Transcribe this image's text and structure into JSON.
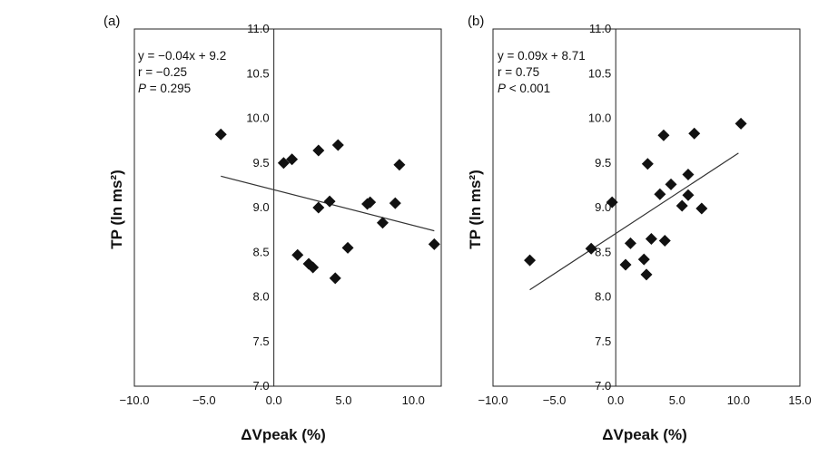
{
  "chart_data": [
    {
      "type": "scatter",
      "panel_label": "(a)",
      "xlabel": "ΔVpeak (%)",
      "ylabel": "TP (ln  ms²)",
      "xlim": [
        -10,
        12
      ],
      "ylim": [
        7.0,
        11.0
      ],
      "x_ticks": [
        "−10.0",
        "−5.0",
        "0.0",
        "5.0",
        "10.0"
      ],
      "y_ticks": [
        "7.0",
        "7.5",
        "8.0",
        "8.5",
        "9.0",
        "9.5",
        "10.0",
        "10.5",
        "11.0"
      ],
      "annotation": {
        "line1": "y = −0.04x + 9.2",
        "line2": "r = −0.25",
        "p_label": "P",
        "p_value": " = 0.295"
      },
      "regression": {
        "slope": -0.04,
        "intercept": 9.2,
        "x_range": [
          -3.8,
          11.5
        ]
      },
      "points": [
        {
          "x": -3.8,
          "y": 9.82
        },
        {
          "x": 0.7,
          "y": 9.5
        },
        {
          "x": 1.3,
          "y": 9.54
        },
        {
          "x": 1.7,
          "y": 8.47
        },
        {
          "x": 2.5,
          "y": 8.37
        },
        {
          "x": 2.8,
          "y": 8.33
        },
        {
          "x": 3.2,
          "y": 9.0
        },
        {
          "x": 3.2,
          "y": 9.64
        },
        {
          "x": 4.0,
          "y": 9.07
        },
        {
          "x": 4.4,
          "y": 8.21
        },
        {
          "x": 4.6,
          "y": 9.7
        },
        {
          "x": 5.3,
          "y": 8.55
        },
        {
          "x": 6.7,
          "y": 9.04
        },
        {
          "x": 6.9,
          "y": 9.06
        },
        {
          "x": 7.8,
          "y": 8.83
        },
        {
          "x": 8.7,
          "y": 9.05
        },
        {
          "x": 9.0,
          "y": 9.48
        },
        {
          "x": 11.5,
          "y": 8.59
        }
      ]
    },
    {
      "type": "scatter",
      "panel_label": "(b)",
      "xlabel": "ΔVpeak (%)",
      "ylabel": "TP (ln  ms²)",
      "xlim": [
        -10,
        15
      ],
      "ylim": [
        7.0,
        11.0
      ],
      "x_ticks": [
        "−10.0",
        "−5.0",
        "0.0",
        "5.0",
        "10.0",
        "15.0"
      ],
      "y_ticks": [
        "7.0",
        "7.5",
        "8.0",
        "8.5",
        "9.0",
        "9.5",
        "10.0",
        "10.5",
        "11.0"
      ],
      "annotation": {
        "line1": "y = 0.09x + 8.71",
        "line2": "r = 0.75",
        "p_label": "P",
        "p_value": " < 0.001"
      },
      "regression": {
        "slope": 0.09,
        "intercept": 8.71,
        "x_range": [
          -7.0,
          10.0
        ]
      },
      "points": [
        {
          "x": -7.0,
          "y": 8.41
        },
        {
          "x": -0.3,
          "y": 9.06
        },
        {
          "x": -2.0,
          "y": 8.54
        },
        {
          "x": 0.8,
          "y": 8.36
        },
        {
          "x": 1.2,
          "y": 8.6
        },
        {
          "x": 2.3,
          "y": 8.42
        },
        {
          "x": 2.5,
          "y": 8.25
        },
        {
          "x": 2.6,
          "y": 9.49
        },
        {
          "x": 2.9,
          "y": 8.65
        },
        {
          "x": 3.6,
          "y": 9.15
        },
        {
          "x": 3.9,
          "y": 9.81
        },
        {
          "x": 4.0,
          "y": 8.63
        },
        {
          "x": 4.5,
          "y": 9.26
        },
        {
          "x": 5.4,
          "y": 9.02
        },
        {
          "x": 5.9,
          "y": 9.14
        },
        {
          "x": 5.9,
          "y": 9.37
        },
        {
          "x": 6.4,
          "y": 9.83
        },
        {
          "x": 7.0,
          "y": 8.99
        },
        {
          "x": 10.2,
          "y": 9.94
        }
      ]
    }
  ]
}
